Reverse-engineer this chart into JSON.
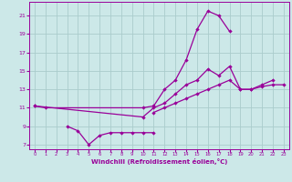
{
  "background_color": "#cce8e8",
  "line_color": "#990099",
  "grid_color": "#aacccc",
  "xlabel": "Windchill (Refroidissement éolien,°C)",
  "xlim": [
    -0.5,
    23.5
  ],
  "ylim": [
    6.5,
    22.5
  ],
  "yticks": [
    7,
    9,
    11,
    13,
    15,
    17,
    19,
    21
  ],
  "xticks": [
    0,
    1,
    2,
    3,
    4,
    5,
    6,
    7,
    8,
    9,
    10,
    11,
    12,
    13,
    14,
    15,
    16,
    17,
    18,
    19,
    20,
    21,
    22,
    23
  ],
  "series": [
    {
      "x": [
        0,
        1,
        10,
        11,
        12,
        13,
        14,
        15,
        16,
        17,
        18
      ],
      "y": [
        11.2,
        11.0,
        11.0,
        11.2,
        13.0,
        14.0,
        16.2,
        19.5,
        21.5,
        21.0,
        19.3
      ]
    },
    {
      "x": [
        3,
        4,
        5,
        6,
        7,
        8,
        9,
        10,
        11
      ],
      "y": [
        9.0,
        8.5,
        7.0,
        8.0,
        8.3,
        8.3,
        8.3,
        8.3,
        8.3
      ]
    },
    {
      "x": [
        0,
        10,
        11,
        12,
        13,
        14,
        15,
        16,
        17,
        18,
        19,
        20,
        21,
        22
      ],
      "y": [
        11.2,
        10.0,
        11.0,
        11.5,
        12.5,
        13.5,
        14.0,
        15.2,
        14.5,
        15.5,
        13.0,
        13.0,
        13.5,
        14.0
      ]
    },
    {
      "x": [
        11,
        12,
        13,
        14,
        15,
        16,
        17,
        18,
        19,
        20,
        21,
        22,
        23
      ],
      "y": [
        10.5,
        11.0,
        11.5,
        12.0,
        12.5,
        13.0,
        13.5,
        14.0,
        13.0,
        13.0,
        13.3,
        13.5,
        13.5
      ]
    }
  ]
}
